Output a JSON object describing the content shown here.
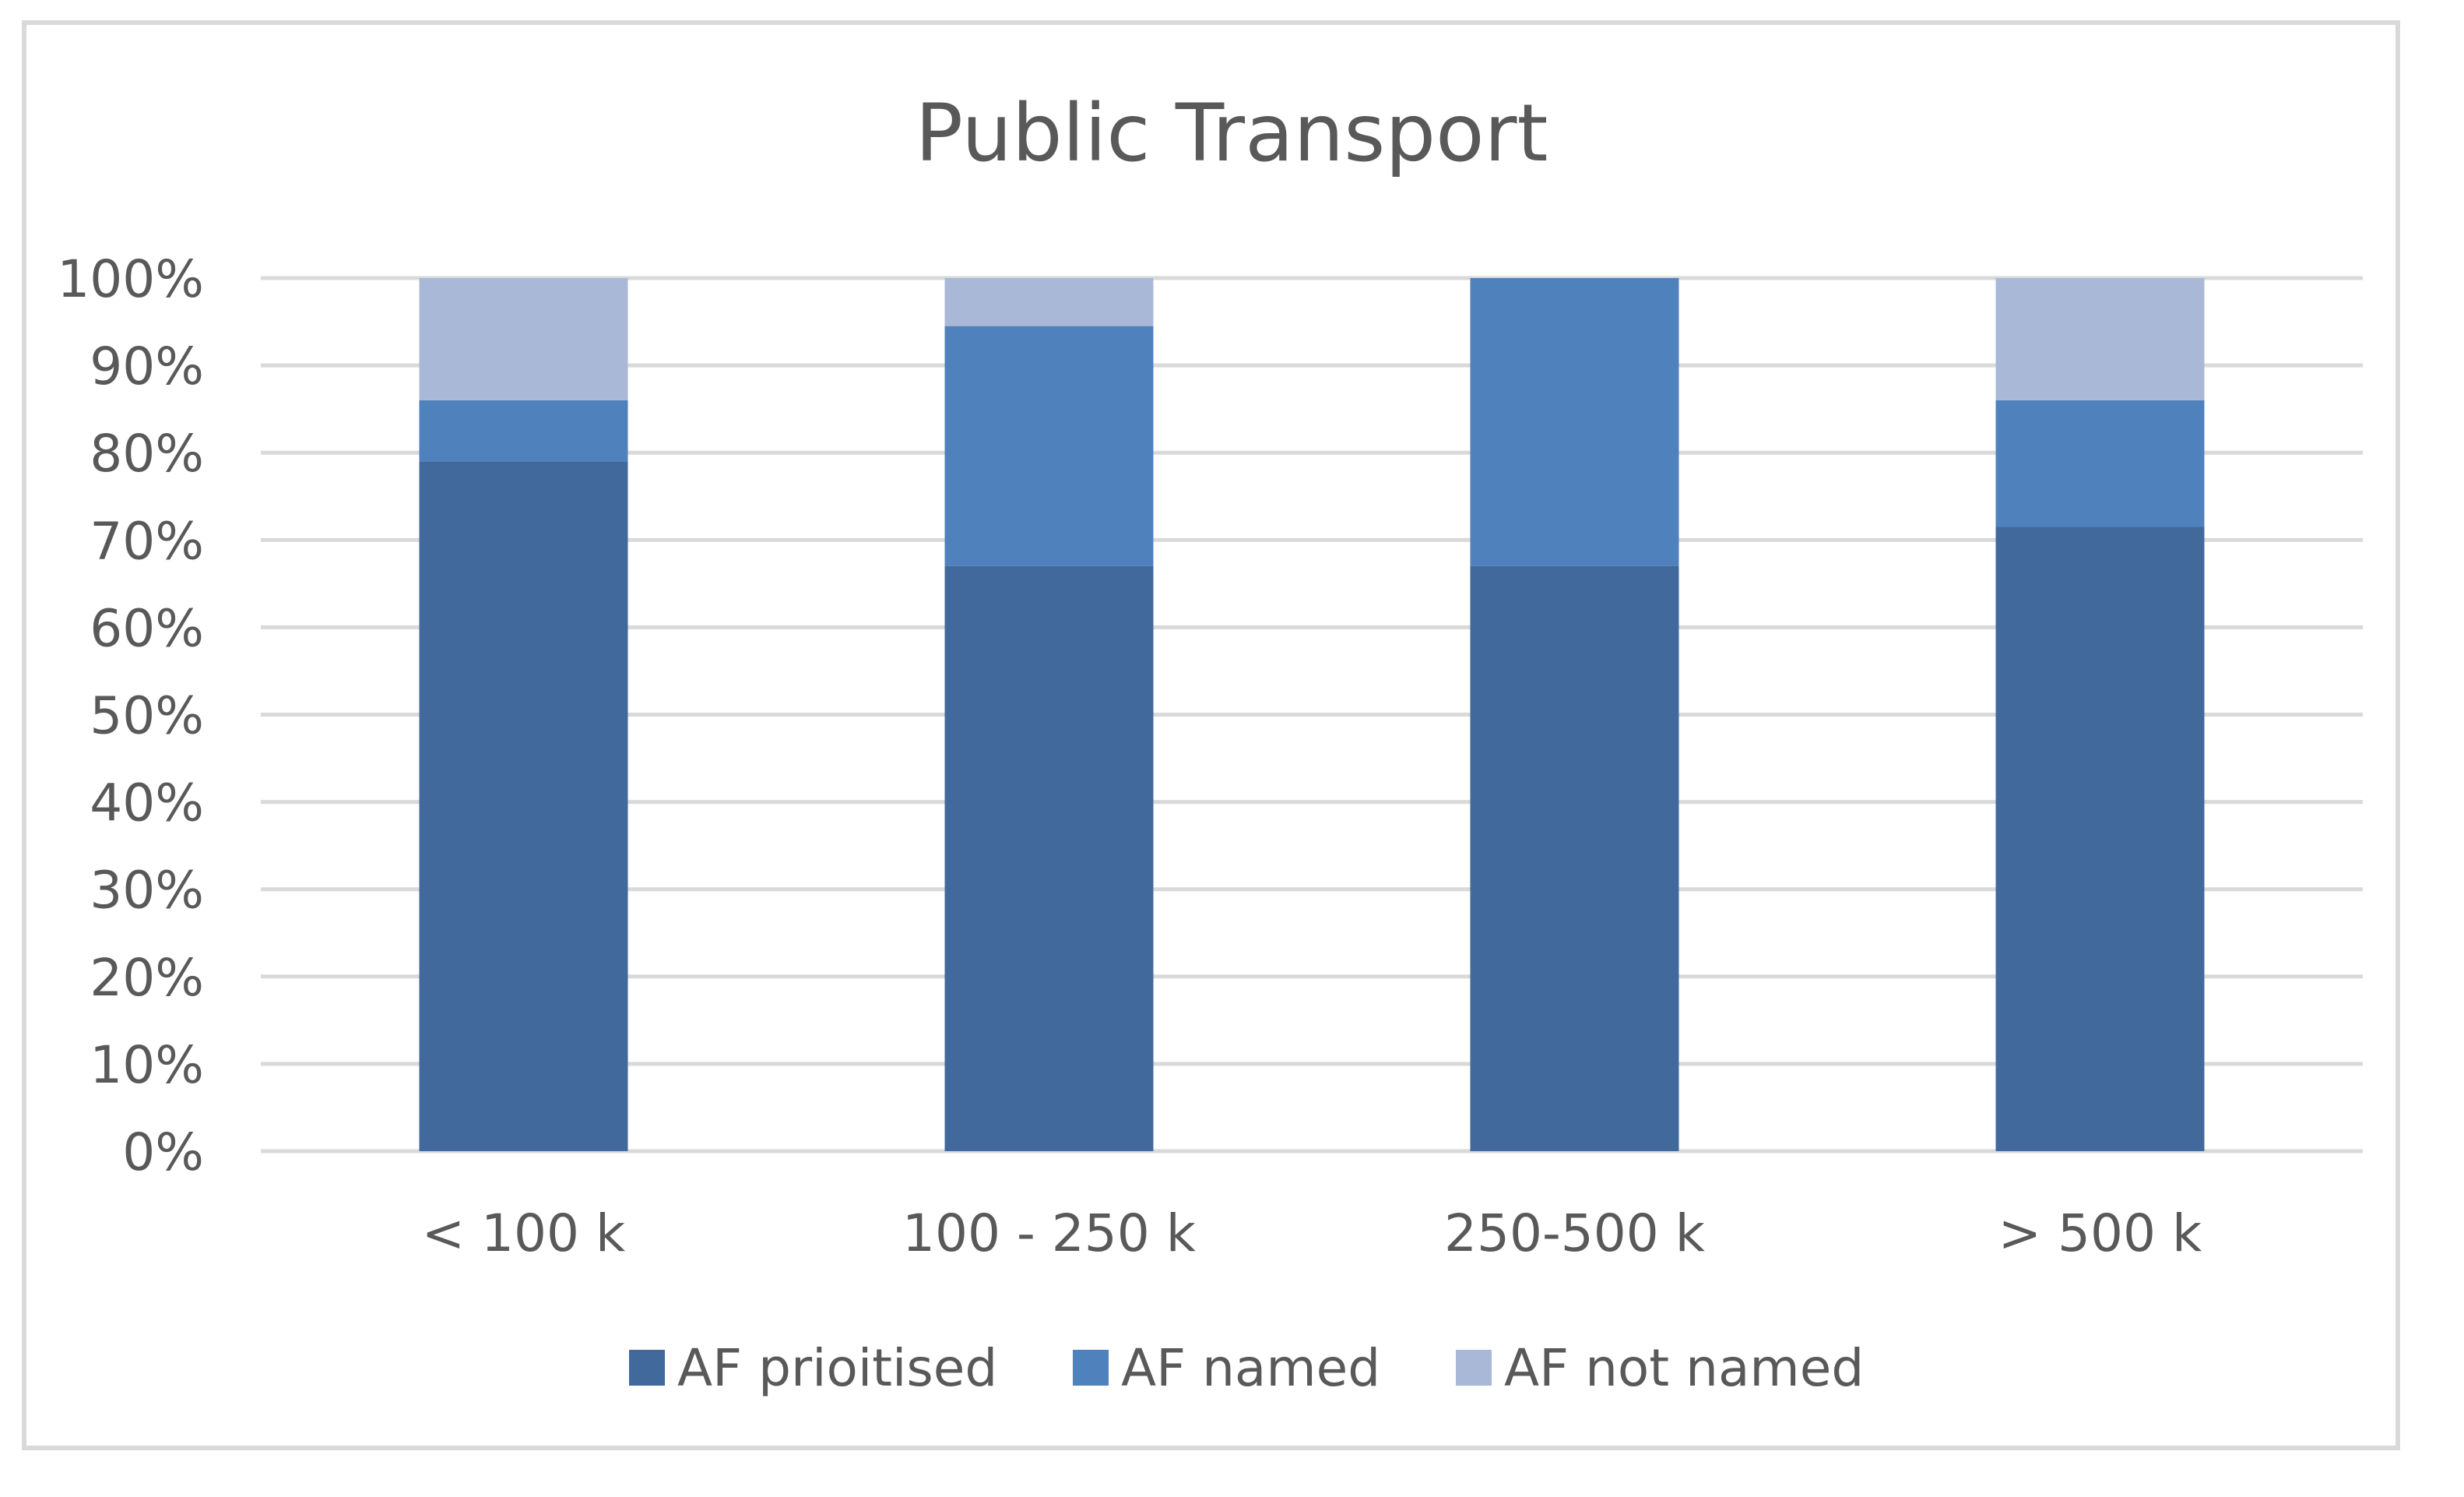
{
  "chart_data": {
    "type": "bar",
    "stacked": true,
    "title": "Public Transport",
    "xlabel": "",
    "ylabel": "",
    "categories": [
      "< 100 k",
      "100 - 250 k",
      "250-500 k",
      "> 500 k"
    ],
    "series": [
      {
        "name": "AF prioitised",
        "color": "#41699c",
        "values": [
          79,
          67,
          67,
          71.5
        ]
      },
      {
        "name": "AF named",
        "color": "#4f81bd",
        "values": [
          7,
          27.5,
          33,
          14.5
        ]
      },
      {
        "name": "AF not named",
        "color": "#a9b8d6",
        "values": [
          14,
          5.5,
          0,
          14
        ]
      }
    ],
    "y_ticks": [
      "0%",
      "10%",
      "20%",
      "30%",
      "40%",
      "50%",
      "60%",
      "70%",
      "80%",
      "90%",
      "100%"
    ],
    "ylim": [
      0,
      100
    ],
    "grid": true,
    "legend_position": "bottom"
  },
  "colors": {
    "frame": "#d9d9d9",
    "grid": "#d9d9d9",
    "text": "#595959"
  }
}
